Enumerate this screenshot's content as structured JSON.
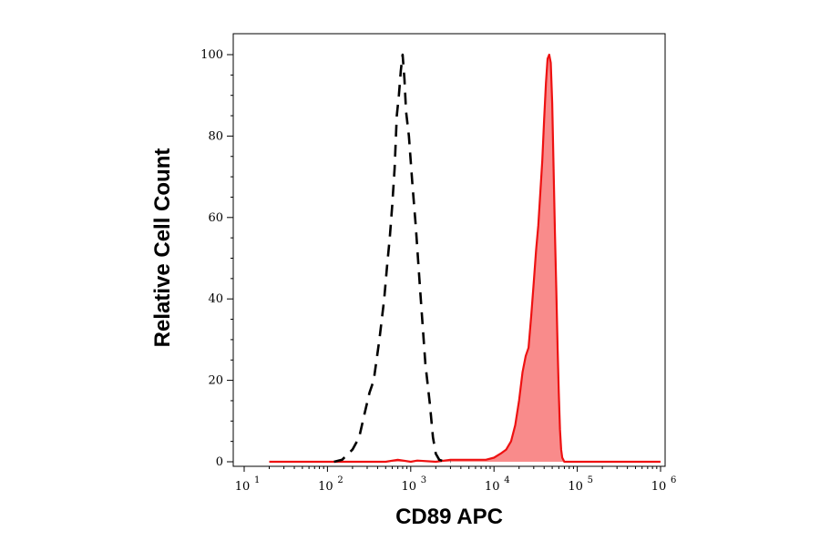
{
  "chart_data": {
    "type": "area",
    "xlabel": "CD89 APC",
    "ylabel": "Relative Cell Count",
    "x_scale": "log",
    "xlim": [
      10,
      1000000
    ],
    "ylim": [
      0,
      100
    ],
    "x_ticks": [
      {
        "value": 10,
        "base": "10",
        "exp": "1"
      },
      {
        "value": 100,
        "base": "10",
        "exp": "2"
      },
      {
        "value": 1000,
        "base": "10",
        "exp": "3"
      },
      {
        "value": 10000,
        "base": "10",
        "exp": "4"
      },
      {
        "value": 100000,
        "base": "10",
        "exp": "5"
      },
      {
        "value": 1000000,
        "base": "10",
        "exp": "6"
      }
    ],
    "y_ticks": [
      "0",
      "20",
      "40",
      "60",
      "80",
      "100"
    ],
    "grid": false,
    "colors": {
      "control": "#000000",
      "stained_line": "#ee1111",
      "stained_fill": "#f98b8b"
    },
    "series": [
      {
        "style": "dashed-black-line",
        "x": [
          120,
          150,
          200,
          240,
          280,
          320,
          360,
          420,
          480,
          520,
          560,
          600,
          640,
          680,
          720,
          760,
          800,
          840,
          880,
          950,
          1050,
          1150,
          1300,
          1500,
          1700,
          1850,
          2000,
          2200,
          2600,
          3000
        ],
        "y": [
          0,
          0.5,
          3,
          6,
          12,
          17,
          20,
          30,
          40,
          48,
          55,
          63,
          72,
          85,
          90,
          96,
          100,
          94,
          86,
          80,
          68,
          58,
          42,
          24,
          14,
          6,
          2,
          0.5,
          0,
          0
        ]
      },
      {
        "style": "red-filled",
        "x": [
          20,
          100,
          500,
          700,
          1000,
          1200,
          2000,
          3000,
          5000,
          8000,
          10000,
          12000,
          14000,
          16000,
          18000,
          20000,
          22000,
          24000,
          26000,
          28000,
          30000,
          32000,
          34000,
          36000,
          38000,
          40000,
          42000,
          44000,
          46000,
          48000,
          50000,
          52000,
          54000,
          56000,
          58000,
          60000,
          62000,
          64000,
          66000,
          70000,
          80000,
          100000,
          1000000
        ],
        "y": [
          0,
          0,
          0,
          0.5,
          0,
          0.3,
          0,
          0.5,
          0.5,
          0.5,
          1,
          2,
          3,
          5,
          9,
          15,
          22,
          26,
          28,
          36,
          44,
          52,
          58,
          66,
          74,
          84,
          93,
          99,
          100,
          98,
          88,
          72,
          56,
          42,
          28,
          17,
          8,
          3,
          1,
          0,
          0,
          0,
          0
        ]
      }
    ]
  }
}
